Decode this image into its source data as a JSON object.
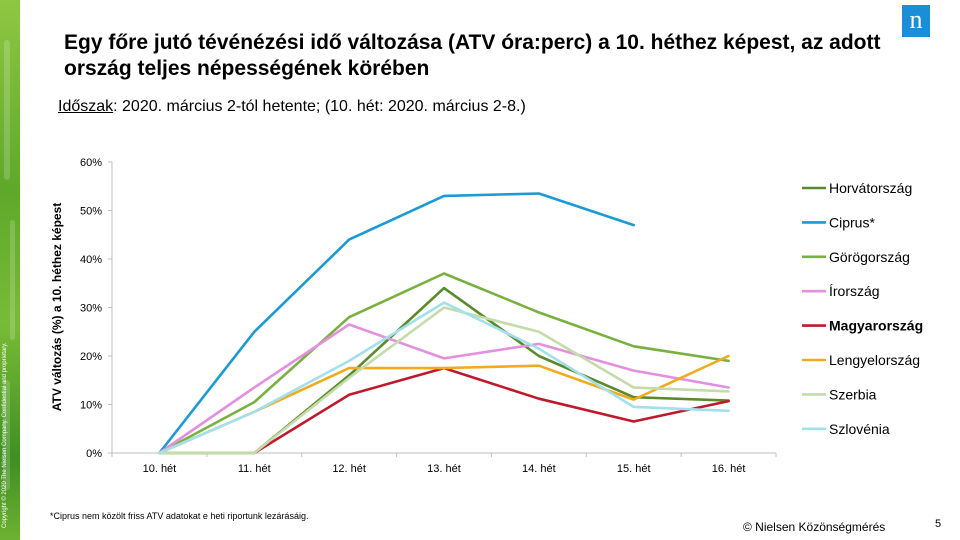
{
  "header": {
    "title": "Egy főre jutó tévénézési idő változása (ATV óra:perc) a 10. héthez képest, az adott ország teljes népességének körében",
    "period_label": "Időszak",
    "period_text": ": 2020. március 2-tól hetente; (10. hét: 2020. március 2-8.)",
    "logo_text": "n"
  },
  "side": {
    "copyright": "Copyright © 2020 The Nielsen Company. Confidential and proprietary."
  },
  "footer": {
    "footnote": "*Ciprus nem közölt friss ATV adatokat e heti riportunk lezárásáig.",
    "source": "© Nielsen Közönségmérés",
    "page_number": "5"
  },
  "chart_data": {
    "type": "line",
    "title": "",
    "xlabel": "",
    "ylabel": "ATV változás (%) a 10. héthez képest",
    "categories": [
      "10. hét",
      "11. hét",
      "12. hét",
      "13. hét",
      "14. hét",
      "15. hét",
      "16. hét"
    ],
    "ylim": [
      0,
      60
    ],
    "yticks": [
      0,
      10,
      20,
      30,
      40,
      50,
      60
    ],
    "ytick_labels": [
      "0%",
      "10%",
      "20%",
      "30%",
      "40%",
      "50%",
      "60%"
    ],
    "grid": false,
    "legend_position": "right",
    "series": [
      {
        "name": "Horvátország",
        "color": "#5a8a2a",
        "bold": false,
        "values": [
          0,
          0,
          16,
          34,
          20,
          11.5,
          10.8
        ]
      },
      {
        "name": "Ciprus*",
        "color": "#1a9ad6",
        "bold": false,
        "values": [
          0,
          25,
          44,
          53,
          53.5,
          47,
          null
        ]
      },
      {
        "name": "Görögország",
        "color": "#7ab040",
        "bold": false,
        "values": [
          0,
          10.5,
          28,
          37,
          29,
          22,
          19
        ]
      },
      {
        "name": "Írország",
        "color": "#e48fe0",
        "bold": false,
        "values": [
          0,
          13.5,
          26.5,
          19.5,
          22.5,
          17,
          13.5
        ]
      },
      {
        "name": "Magyarország",
        "color": "#c0192b",
        "bold": true,
        "values": [
          null,
          0,
          12,
          17.5,
          11.2,
          6.5,
          10.7
        ]
      },
      {
        "name": "Lengyelország",
        "color": "#f0ac1c",
        "bold": false,
        "values": [
          0,
          8.5,
          17.5,
          17.5,
          18,
          11,
          20
        ]
      },
      {
        "name": "Szerbia",
        "color": "#c4dcaa",
        "bold": false,
        "values": [
          0,
          0,
          15.5,
          30,
          25,
          13.5,
          12.7
        ]
      },
      {
        "name": "Szlovénia",
        "color": "#a2e0ec",
        "bold": false,
        "values": [
          0,
          8.5,
          19,
          31,
          21.5,
          9.5,
          8.7
        ]
      }
    ]
  }
}
